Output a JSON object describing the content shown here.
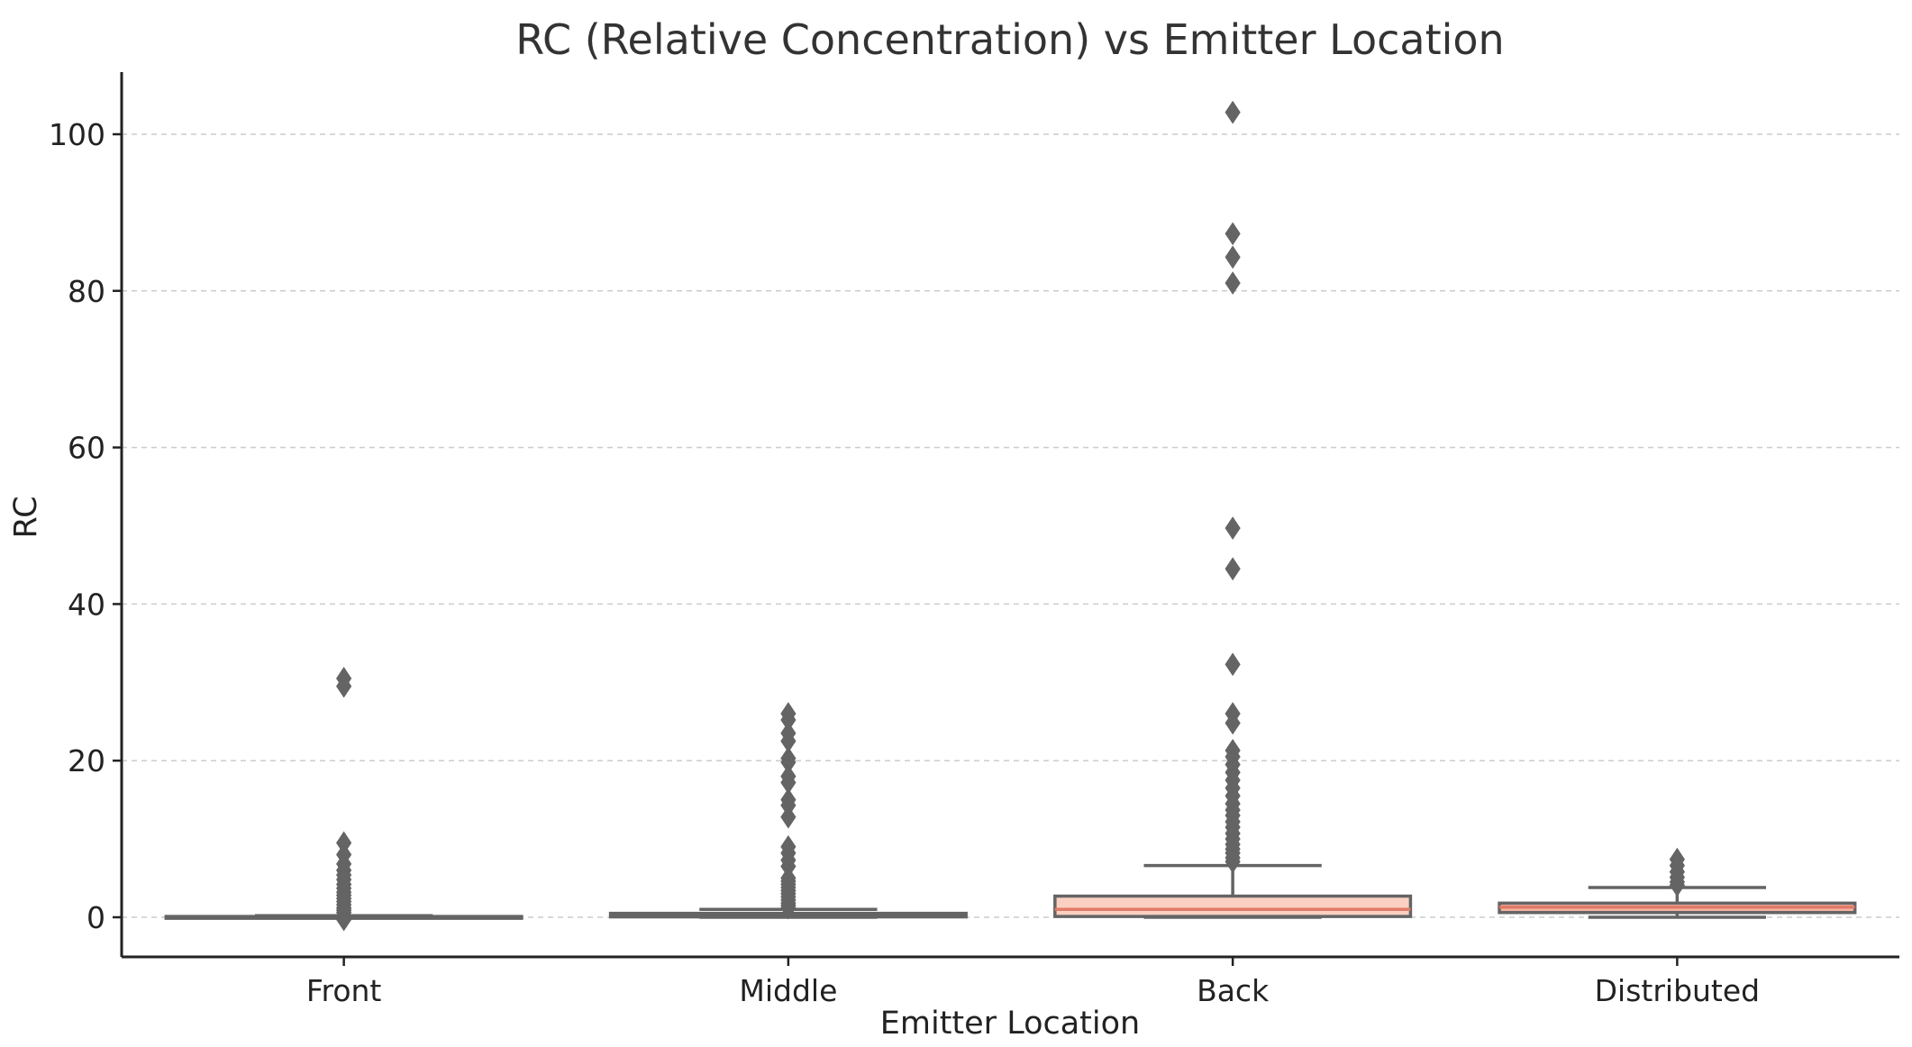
{
  "chart_data": {
    "type": "box",
    "title": "RC (Relative Concentration) vs Emitter Location",
    "xlabel": "Emitter Location",
    "ylabel": "RC",
    "categories": [
      "Front",
      "Middle",
      "Back",
      "Distributed"
    ],
    "ylim": [
      -5,
      108
    ],
    "yticks": [
      0,
      20,
      40,
      60,
      80,
      100
    ],
    "ytick_labels": [
      "0",
      "20",
      "40",
      "60",
      "80",
      "100"
    ],
    "grid": "y-dashed",
    "colors": {
      "box_fill": [
        "#ffffff",
        "#fde6de",
        "#fbd0c2",
        "#f6b3a2"
      ],
      "box_edge": "#646464",
      "median": "#e07b67",
      "grid": "#cccccc",
      "axis": "#222222",
      "text": "#333333"
    },
    "series": [
      {
        "category": "Front",
        "q1": 0.0,
        "median": 0.05,
        "q3": 0.1,
        "whisker_low": 0.0,
        "whisker_high": 0.2,
        "outliers": [
          30.5,
          29.5,
          9.5,
          8.0,
          6.8,
          6.0,
          5.4,
          4.8,
          4.2,
          3.7,
          3.2,
          2.8,
          2.4,
          2.0,
          1.6,
          1.2,
          0.9,
          0.6,
          -0.3
        ]
      },
      {
        "category": "Middle",
        "q1": 0.05,
        "median": 0.2,
        "q3": 0.5,
        "whisker_low": 0.0,
        "whisker_high": 1.0,
        "outliers": [
          26.0,
          25.2,
          23.5,
          22.5,
          20.3,
          19.8,
          18.0,
          17.2,
          15.0,
          14.3,
          12.8,
          9.0,
          8.2,
          7.3,
          6.5,
          5.0,
          4.6,
          4.2,
          3.8,
          3.4,
          3.0,
          2.6,
          2.2,
          1.8,
          1.5,
          1.2
        ]
      },
      {
        "category": "Back",
        "q1": 0.1,
        "median": 1.0,
        "q3": 2.7,
        "whisker_low": 0.0,
        "whisker_high": 6.6,
        "outliers": [
          102.8,
          87.3,
          84.3,
          81.0,
          49.7,
          44.5,
          32.3,
          26.0,
          24.8,
          21.3,
          20.5,
          19.5,
          18.5,
          17.5,
          16.5,
          15.5,
          14.5,
          13.7,
          13.0,
          12.2,
          11.5,
          10.7,
          10.0,
          9.3,
          8.7,
          8.2,
          7.6,
          7.1
        ]
      },
      {
        "category": "Distributed",
        "q1": 0.6,
        "median": 1.3,
        "q3": 1.8,
        "whisker_low": 0.0,
        "whisker_high": 3.8,
        "outliers": [
          7.4,
          6.6,
          5.8,
          5.1,
          4.5,
          4.1
        ]
      }
    ]
  }
}
